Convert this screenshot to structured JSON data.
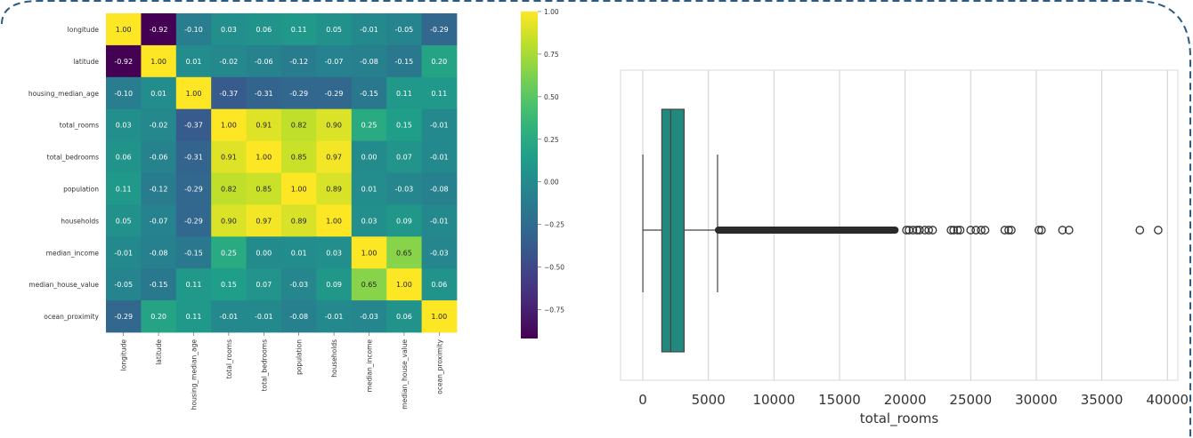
{
  "chart_data": [
    {
      "type": "heatmap",
      "colormap": "viridis",
      "labels": [
        "longitude",
        "latitude",
        "housing_median_age",
        "total_rooms",
        "total_bedrooms",
        "population",
        "households",
        "median_income",
        "median_house_value",
        "ocean_proximity"
      ],
      "matrix": [
        [
          1.0,
          -0.92,
          -0.1,
          0.03,
          0.06,
          0.11,
          0.05,
          -0.01,
          -0.05,
          -0.29
        ],
        [
          -0.92,
          1.0,
          0.01,
          -0.02,
          -0.06,
          -0.12,
          -0.07,
          -0.08,
          -0.15,
          0.2
        ],
        [
          -0.1,
          0.01,
          1.0,
          -0.37,
          -0.31,
          -0.29,
          -0.29,
          -0.15,
          0.11,
          0.11
        ],
        [
          0.03,
          -0.02,
          -0.37,
          1.0,
          0.91,
          0.82,
          0.9,
          0.25,
          0.15,
          -0.01
        ],
        [
          0.06,
          -0.06,
          -0.31,
          0.91,
          1.0,
          0.85,
          0.97,
          0.0,
          0.07,
          -0.01
        ],
        [
          0.11,
          -0.12,
          -0.29,
          0.82,
          0.85,
          1.0,
          0.89,
          0.01,
          -0.03,
          -0.08
        ],
        [
          0.05,
          -0.07,
          -0.29,
          0.9,
          0.97,
          0.89,
          1.0,
          0.03,
          0.09,
          -0.01
        ],
        [
          -0.01,
          -0.08,
          -0.15,
          0.25,
          0.0,
          0.01,
          0.03,
          1.0,
          0.65,
          -0.03
        ],
        [
          -0.05,
          -0.15,
          0.11,
          0.15,
          0.07,
          -0.03,
          0.09,
          0.65,
          1.0,
          0.06
        ],
        [
          -0.29,
          0.2,
          0.11,
          -0.01,
          -0.01,
          -0.08,
          -0.01,
          -0.03,
          0.06,
          1.0
        ]
      ],
      "colorbar": {
        "range": [
          -0.92,
          1.0
        ],
        "ticks": [
          1.0,
          0.75,
          0.5,
          0.25,
          0.0,
          -0.25,
          -0.5,
          -0.75
        ],
        "tick_labels": [
          "1.00",
          "0.75",
          "0.50",
          "0.25",
          "0.00",
          "−0.25",
          "−0.50",
          "−0.75"
        ]
      }
    },
    {
      "type": "boxplot",
      "orientation": "horizontal",
      "xlabel": "total_rooms",
      "xlim": [
        -1700,
        40800
      ],
      "xticks": [
        0,
        5000,
        10000,
        15000,
        20000,
        25000,
        30000,
        35000,
        40000
      ],
      "grid": true,
      "box": {
        "whisker_low": 2,
        "q1": 1448,
        "median": 2127,
        "q3": 3148,
        "whisker_high": 5698,
        "color": "#23887e"
      },
      "outliers_dense_range": [
        5700,
        19300
      ],
      "outliers": [
        20100,
        20300,
        20600,
        20900,
        21100,
        21500,
        21800,
        22100,
        23500,
        23700,
        24000,
        24200,
        25000,
        25400,
        25800,
        26100,
        27600,
        27900,
        28100,
        30200,
        30400,
        32000,
        32500,
        37900,
        39300
      ]
    }
  ]
}
